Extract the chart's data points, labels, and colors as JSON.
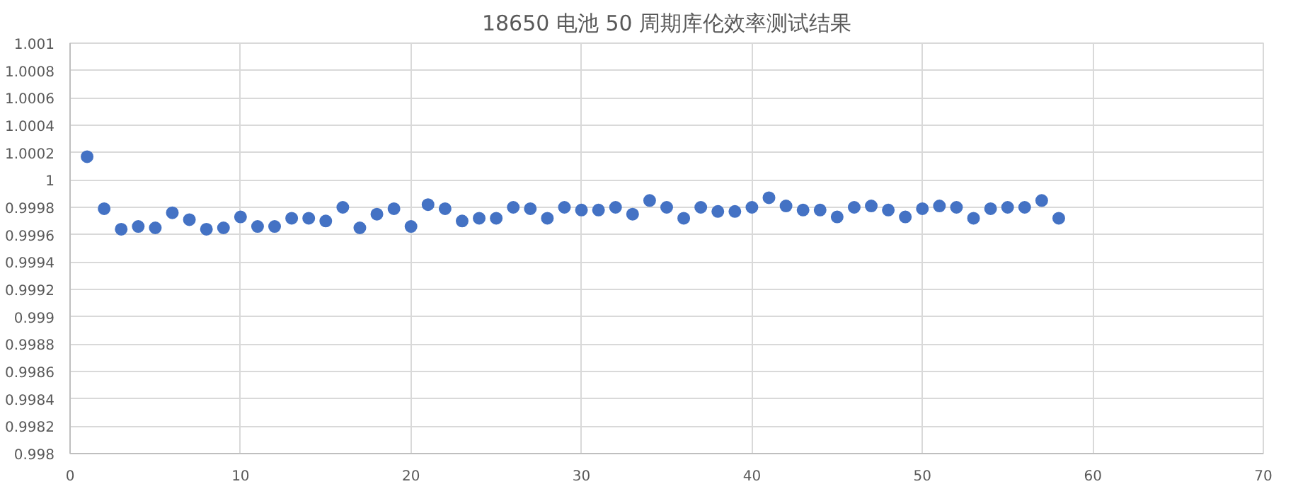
{
  "chart_data": {
    "type": "scatter",
    "title": "18650 电池 50 周期库伦效率测试结果",
    "x": [
      1,
      2,
      3,
      4,
      5,
      6,
      7,
      8,
      9,
      10,
      11,
      12,
      13,
      14,
      15,
      16,
      17,
      18,
      19,
      20,
      21,
      22,
      23,
      24,
      25,
      26,
      27,
      28,
      29,
      30,
      31,
      32,
      33,
      34,
      35,
      36,
      37,
      38,
      39,
      40,
      41,
      42,
      43,
      44,
      45,
      46,
      47,
      48,
      49,
      50,
      51,
      52,
      53,
      54,
      55,
      56,
      57,
      58
    ],
    "series": [
      {
        "color": "#4472c4",
        "values": [
          1.00017,
          0.99979,
          0.99964,
          0.99966,
          0.99965,
          0.99976,
          0.99971,
          0.99964,
          0.99965,
          0.99973,
          0.99966,
          0.99966,
          0.99972,
          0.99972,
          0.9997,
          0.9998,
          0.99965,
          0.99975,
          0.99979,
          0.99966,
          0.99982,
          0.99979,
          0.9997,
          0.99972,
          0.99972,
          0.9998,
          0.99979,
          0.99972,
          0.9998,
          0.99978,
          0.99978,
          0.9998,
          0.99975,
          0.99985,
          0.9998,
          0.99972,
          0.9998,
          0.99977,
          0.99977,
          0.9998,
          0.99987,
          0.99981,
          0.99978,
          0.99978,
          0.99973,
          0.9998,
          0.99981,
          0.99978,
          0.99973,
          0.99979,
          0.99981,
          0.9998,
          0.99972,
          0.99979,
          0.9998,
          0.9998,
          0.99985,
          0.99972
        ]
      }
    ],
    "xlim": [
      0,
      70
    ],
    "xticks": [
      0,
      10,
      20,
      30,
      40,
      50,
      60,
      70
    ],
    "ylim": [
      0.998,
      1.001
    ],
    "yticks": [
      0.998,
      0.9982,
      0.9984,
      0.9986,
      0.9988,
      0.999,
      0.9992,
      0.9994,
      0.9996,
      0.9998,
      1,
      1.0002,
      1.0004,
      1.0006,
      1.0008,
      1.001
    ],
    "grid": true,
    "marker": "circle"
  }
}
